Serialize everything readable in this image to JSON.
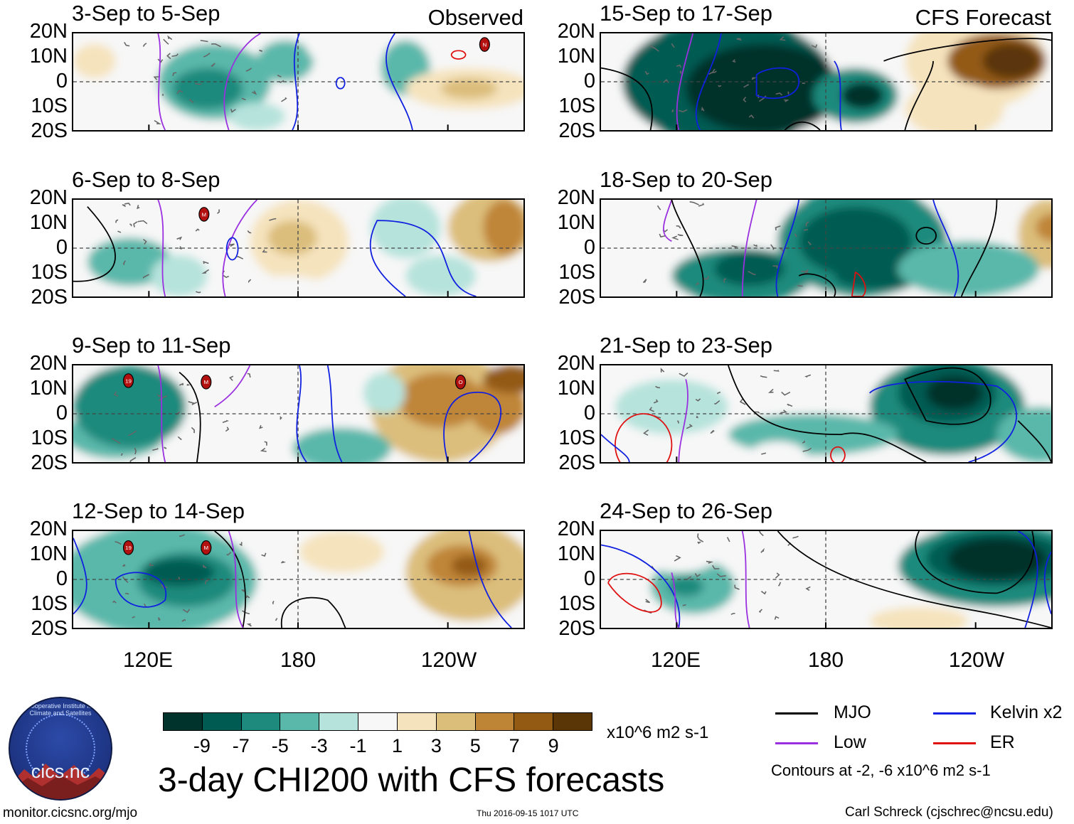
{
  "panels_left": [
    {
      "title": "3-Sep to 5-Sep",
      "header": "Observed"
    },
    {
      "title": "6-Sep to 8-Sep",
      "header": ""
    },
    {
      "title": "9-Sep to 11-Sep",
      "header": ""
    },
    {
      "title": "12-Sep to 14-Sep",
      "header": ""
    }
  ],
  "panels_right": [
    {
      "title": "15-Sep to 17-Sep",
      "header": "CFS Forecast"
    },
    {
      "title": "18-Sep to 20-Sep",
      "header": ""
    },
    {
      "title": "21-Sep to 23-Sep",
      "header": ""
    },
    {
      "title": "24-Sep to 26-Sep",
      "header": ""
    }
  ],
  "lat_labels": [
    "20N",
    "10N",
    "0",
    "10S",
    "20S"
  ],
  "lon_labels": [
    "120E",
    "180",
    "120W"
  ],
  "colorbar": {
    "ticks": [
      "-9",
      "-7",
      "-5",
      "-3",
      "-1",
      "1",
      "3",
      "5",
      "7",
      "9"
    ],
    "colors": [
      "#00332b",
      "#005c52",
      "#1e8a7d",
      "#5ab8aa",
      "#b6e3dc",
      "#f7f7f7",
      "#f5e3bd",
      "#dcbe7b",
      "#bf8537",
      "#935a14",
      "#5a3607"
    ],
    "units": "x10^6 m2 s-1"
  },
  "main_title": "3-day CHI200 with CFS forecasts",
  "legend": {
    "items": [
      {
        "label": "MJO",
        "color": "#000000"
      },
      {
        "label": "Kelvin x2",
        "color": "#1020e0"
      },
      {
        "label": "Low",
        "color": "#9a30e0"
      },
      {
        "label": "ER",
        "color": "#e01010"
      }
    ],
    "contours_note": "Contours at -2, -6 x10^6 m2 s-1"
  },
  "footer": {
    "url": "monitor.cicsnc.org/mjo",
    "timestamp": "Thu 2016-09-15 1017 UTC",
    "author": "Carl Schreck (cjschrec@ncsu.edu)"
  },
  "logo": {
    "name": "cics.nc",
    "arc_text": "Cooperative Institute for Climate and Satellites"
  },
  "storm_markers": [
    {
      "panel": "left-0",
      "labels": [
        "N"
      ]
    },
    {
      "panel": "left-1",
      "labels": [
        "M"
      ]
    },
    {
      "panel": "left-2",
      "labels": [
        "19",
        "M",
        "O"
      ]
    },
    {
      "panel": "left-3",
      "labels": [
        "19",
        "M"
      ]
    }
  ]
}
